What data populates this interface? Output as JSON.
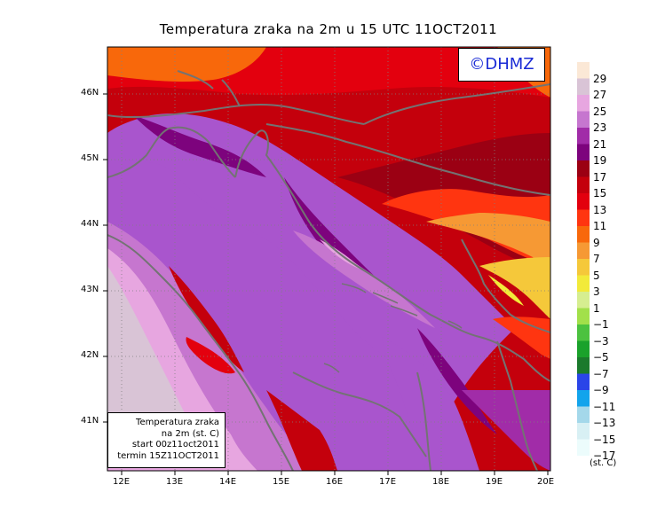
{
  "title": "Temperatura zraka na 2m u 15 UTC 11OCT2011",
  "copyright": "©DHMZ",
  "infobox": {
    "lines": [
      "Temperatura zraka",
      "na 2m (st. C)",
      "start 00z11oct2011",
      "termin 15Z11OCT2011"
    ]
  },
  "axes": {
    "lon_labels": [
      "12E",
      "13E",
      "14E",
      "15E",
      "16E",
      "17E",
      "18E",
      "19E",
      "20E"
    ],
    "lat_labels": [
      "46N",
      "45N",
      "44N",
      "43N",
      "42N",
      "41N"
    ]
  },
  "legend": {
    "unit": "(st. C)",
    "labels": [
      "29",
      "27",
      "25",
      "23",
      "21",
      "19",
      "17",
      "15",
      "13",
      "11",
      "9",
      "7",
      "5",
      "3",
      "1",
      "−1",
      "−3",
      "−5",
      "−7",
      "−9",
      "−11",
      "−13",
      "−15",
      "−17"
    ],
    "colors": [
      "#fbe8d6",
      "#d9c4d6",
      "#e7a6e0",
      "#c676cf",
      "#a12ca8",
      "#7d037d",
      "#9b0013",
      "#c4000c",
      "#e3000e",
      "#ff3510",
      "#f8680b",
      "#f69934",
      "#f5c83a",
      "#f2ea3a",
      "#d6ee90",
      "#a2e04a",
      "#4cc23f",
      "#1aa22b",
      "#1b7a2c",
      "#2a45e8",
      "#12a4ec",
      "#a4d8ea",
      "#d8f0f4",
      "#ecfcfc"
    ]
  },
  "colors": {
    "sea": "#a955cd",
    "coast": "#737373"
  }
}
